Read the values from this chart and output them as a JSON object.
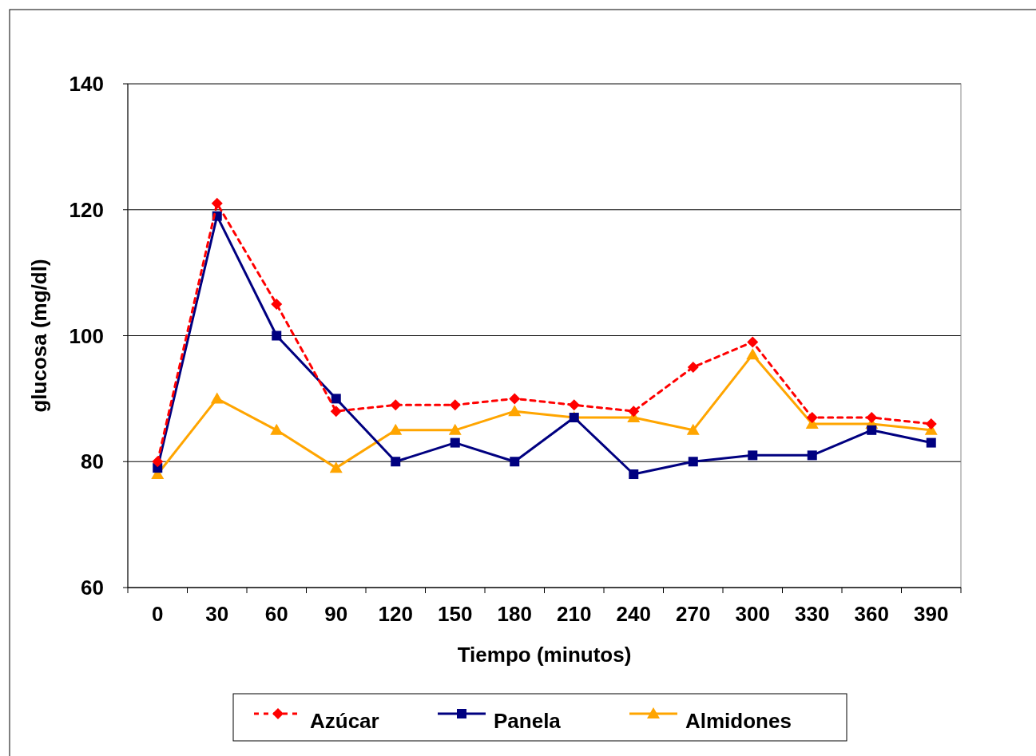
{
  "chart_data": {
    "type": "line",
    "xlabel": "Tiempo (minutos)",
    "ylabel": "glucosa (mg/dl)",
    "categories": [
      "0",
      "30",
      "60",
      "90",
      "120",
      "150",
      "180",
      "210",
      "240",
      "270",
      "300",
      "330",
      "360",
      "390"
    ],
    "series": [
      {
        "name": "Azúcar",
        "color": "#ff0000",
        "marker": "diamond",
        "line_style": "dashed",
        "values": [
          80,
          121,
          105,
          88,
          89,
          89,
          90,
          89,
          88,
          95,
          99,
          87,
          87,
          86
        ]
      },
      {
        "name": "Panela",
        "color": "#000080",
        "marker": "square",
        "line_style": "solid",
        "values": [
          79,
          119,
          100,
          90,
          80,
          83,
          80,
          87,
          78,
          80,
          81,
          81,
          85,
          83
        ]
      },
      {
        "name": "Almidones",
        "color": "#ffa500",
        "marker": "triangle",
        "line_style": "solid",
        "values": [
          78,
          90,
          85,
          79,
          85,
          85,
          88,
          87,
          87,
          85,
          97,
          86,
          86,
          85
        ]
      }
    ],
    "ylim": [
      60,
      140
    ],
    "yticks": [
      60,
      80,
      100,
      120,
      140
    ],
    "grid": "y",
    "legend": "bottom"
  }
}
